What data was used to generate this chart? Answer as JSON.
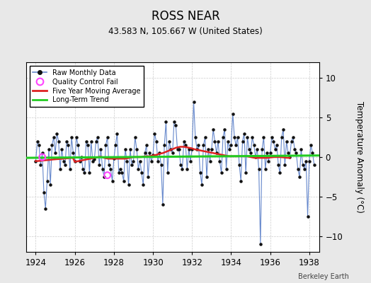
{
  "title": "ROSS NEAR",
  "subtitle": "43.583 N, 105.667 W (United States)",
  "ylabel": "Temperature Anomaly (°C)",
  "credit": "Berkeley Earth",
  "xlim": [
    1923.5,
    1938.5
  ],
  "ylim": [
    -12,
    12
  ],
  "yticks": [
    -10,
    -5,
    0,
    5,
    10
  ],
  "xticks": [
    1924,
    1926,
    1928,
    1930,
    1932,
    1934,
    1936,
    1938
  ],
  "bg_color": "#e8e8e8",
  "plot_bg_color": "#ffffff",
  "line_color": "#6688cc",
  "marker_color": "#111111",
  "moving_avg_color": "#dd2222",
  "trend_color": "#22cc22",
  "qc_color": "#ff44ff",
  "title_fontsize": 12,
  "subtitle_fontsize": 9,
  "raw_data": [
    [
      1924.0,
      -0.5
    ],
    [
      1924.083,
      2.0
    ],
    [
      1924.167,
      1.5
    ],
    [
      1924.25,
      -1.0
    ],
    [
      1924.333,
      0.5
    ],
    [
      1924.417,
      -4.5
    ],
    [
      1924.5,
      -6.5
    ],
    [
      1924.583,
      -3.0
    ],
    [
      1924.667,
      1.0
    ],
    [
      1924.75,
      -3.5
    ],
    [
      1924.833,
      1.5
    ],
    [
      1924.917,
      2.5
    ],
    [
      1925.0,
      0.5
    ],
    [
      1925.083,
      3.0
    ],
    [
      1925.167,
      2.0
    ],
    [
      1925.25,
      -1.5
    ],
    [
      1925.333,
      1.0
    ],
    [
      1925.417,
      -0.5
    ],
    [
      1925.5,
      -1.0
    ],
    [
      1925.583,
      2.0
    ],
    [
      1925.667,
      1.5
    ],
    [
      1925.75,
      -1.5
    ],
    [
      1925.833,
      2.5
    ],
    [
      1925.917,
      0.5
    ],
    [
      1926.0,
      -0.5
    ],
    [
      1926.083,
      2.5
    ],
    [
      1926.167,
      1.5
    ],
    [
      1926.25,
      -0.5
    ],
    [
      1926.333,
      0.0
    ],
    [
      1926.417,
      -1.5
    ],
    [
      1926.5,
      -2.0
    ],
    [
      1926.583,
      2.0
    ],
    [
      1926.667,
      1.5
    ],
    [
      1926.75,
      -2.0
    ],
    [
      1926.833,
      2.0
    ],
    [
      1926.917,
      -0.5
    ],
    [
      1927.0,
      -0.3
    ],
    [
      1927.083,
      2.0
    ],
    [
      1927.167,
      2.5
    ],
    [
      1927.25,
      -1.0
    ],
    [
      1927.333,
      1.0
    ],
    [
      1927.417,
      -1.5
    ],
    [
      1927.5,
      -2.5
    ],
    [
      1927.583,
      1.5
    ],
    [
      1927.667,
      2.5
    ],
    [
      1927.75,
      -1.0
    ],
    [
      1927.833,
      -1.5
    ],
    [
      1927.917,
      -3.0
    ],
    [
      1928.0,
      -0.2
    ],
    [
      1928.083,
      1.5
    ],
    [
      1928.167,
      3.0
    ],
    [
      1928.25,
      -2.0
    ],
    [
      1928.333,
      -1.5
    ],
    [
      1928.417,
      -2.0
    ],
    [
      1928.5,
      -3.0
    ],
    [
      1928.583,
      1.0
    ],
    [
      1928.667,
      -0.5
    ],
    [
      1928.75,
      -3.5
    ],
    [
      1928.833,
      1.0
    ],
    [
      1928.917,
      -1.0
    ],
    [
      1929.0,
      -0.5
    ],
    [
      1929.083,
      2.5
    ],
    [
      1929.167,
      1.0
    ],
    [
      1929.25,
      -1.5
    ],
    [
      1929.333,
      -0.5
    ],
    [
      1929.417,
      -2.0
    ],
    [
      1929.5,
      -3.5
    ],
    [
      1929.583,
      0.5
    ],
    [
      1929.667,
      1.5
    ],
    [
      1929.75,
      -2.5
    ],
    [
      1929.833,
      0.5
    ],
    [
      1929.917,
      -0.5
    ],
    [
      1930.0,
      0.3
    ],
    [
      1930.083,
      3.0
    ],
    [
      1930.167,
      2.0
    ],
    [
      1930.25,
      -0.5
    ],
    [
      1930.333,
      0.5
    ],
    [
      1930.417,
      -1.0
    ],
    [
      1930.5,
      -6.0
    ],
    [
      1930.583,
      1.5
    ],
    [
      1930.667,
      4.5
    ],
    [
      1930.75,
      -2.0
    ],
    [
      1930.833,
      2.0
    ],
    [
      1930.917,
      1.0
    ],
    [
      1931.0,
      0.5
    ],
    [
      1931.083,
      4.5
    ],
    [
      1931.167,
      4.0
    ],
    [
      1931.25,
      1.0
    ],
    [
      1931.333,
      1.0
    ],
    [
      1931.417,
      -1.0
    ],
    [
      1931.5,
      -1.5
    ],
    [
      1931.583,
      2.0
    ],
    [
      1931.667,
      1.5
    ],
    [
      1931.75,
      -1.5
    ],
    [
      1931.833,
      1.0
    ],
    [
      1931.917,
      -0.5
    ],
    [
      1932.0,
      1.0
    ],
    [
      1932.083,
      7.0
    ],
    [
      1932.167,
      2.5
    ],
    [
      1932.25,
      1.0
    ],
    [
      1932.333,
      1.5
    ],
    [
      1932.417,
      -2.0
    ],
    [
      1932.5,
      -3.5
    ],
    [
      1932.583,
      1.5
    ],
    [
      1932.667,
      2.5
    ],
    [
      1932.75,
      -2.5
    ],
    [
      1932.833,
      1.0
    ],
    [
      1932.917,
      -0.5
    ],
    [
      1933.0,
      1.0
    ],
    [
      1933.083,
      3.5
    ],
    [
      1933.167,
      2.0
    ],
    [
      1933.25,
      0.5
    ],
    [
      1933.333,
      2.0
    ],
    [
      1933.417,
      -0.5
    ],
    [
      1933.5,
      -2.0
    ],
    [
      1933.583,
      2.5
    ],
    [
      1933.667,
      3.5
    ],
    [
      1933.75,
      -1.5
    ],
    [
      1933.833,
      2.0
    ],
    [
      1933.917,
      1.0
    ],
    [
      1934.0,
      1.5
    ],
    [
      1934.083,
      5.5
    ],
    [
      1934.167,
      2.5
    ],
    [
      1934.25,
      1.5
    ],
    [
      1934.333,
      2.5
    ],
    [
      1934.417,
      -1.0
    ],
    [
      1934.5,
      -3.0
    ],
    [
      1934.583,
      2.0
    ],
    [
      1934.667,
      3.0
    ],
    [
      1934.75,
      -2.0
    ],
    [
      1934.833,
      2.5
    ],
    [
      1934.917,
      1.0
    ],
    [
      1935.0,
      0.5
    ],
    [
      1935.083,
      2.5
    ],
    [
      1935.167,
      1.5
    ],
    [
      1935.25,
      0.0
    ],
    [
      1935.333,
      1.0
    ],
    [
      1935.417,
      -1.5
    ],
    [
      1935.5,
      -11.0
    ],
    [
      1935.583,
      1.0
    ],
    [
      1935.667,
      2.5
    ],
    [
      1935.75,
      -1.5
    ],
    [
      1935.833,
      0.5
    ],
    [
      1935.917,
      -0.5
    ],
    [
      1936.0,
      0.5
    ],
    [
      1936.083,
      2.5
    ],
    [
      1936.167,
      2.0
    ],
    [
      1936.25,
      1.0
    ],
    [
      1936.333,
      1.5
    ],
    [
      1936.417,
      -1.0
    ],
    [
      1936.5,
      -2.0
    ],
    [
      1936.583,
      2.5
    ],
    [
      1936.667,
      3.5
    ],
    [
      1936.75,
      -1.0
    ],
    [
      1936.833,
      2.0
    ],
    [
      1936.917,
      0.5
    ],
    [
      1937.0,
      0.0
    ],
    [
      1937.083,
      2.0
    ],
    [
      1937.167,
      2.5
    ],
    [
      1937.25,
      1.0
    ],
    [
      1937.333,
      0.5
    ],
    [
      1937.417,
      -1.5
    ],
    [
      1937.5,
      -2.5
    ],
    [
      1937.583,
      1.0
    ],
    [
      1937.667,
      -1.0
    ],
    [
      1937.75,
      -1.5
    ],
    [
      1937.833,
      -0.5
    ],
    [
      1937.917,
      -7.5
    ],
    [
      1938.0,
      -0.5
    ],
    [
      1938.083,
      1.5
    ],
    [
      1938.167,
      0.5
    ],
    [
      1938.25,
      -1.0
    ]
  ],
  "qc_points": [
    [
      1924.333,
      0.0
    ],
    [
      1927.667,
      -2.3
    ]
  ],
  "moving_avg": [
    [
      1924.0,
      -0.5
    ],
    [
      1924.1,
      -0.5
    ],
    [
      1924.2,
      -0.48
    ],
    [
      1924.3,
      -0.45
    ],
    [
      1924.4,
      -0.42
    ],
    [
      1924.5,
      -0.4
    ],
    [
      1924.6,
      -0.38
    ],
    [
      1924.7,
      -0.35
    ],
    [
      1924.8,
      -0.32
    ],
    [
      1924.9,
      -0.3
    ],
    [
      1925.0,
      -0.28
    ],
    [
      1925.1,
      -0.26
    ],
    [
      1925.2,
      -0.24
    ],
    [
      1925.3,
      -0.22
    ],
    [
      1925.4,
      -0.2
    ],
    [
      1925.5,
      -0.18
    ],
    [
      1925.6,
      -0.16
    ],
    [
      1925.7,
      -0.14
    ],
    [
      1925.8,
      -0.12
    ],
    [
      1925.9,
      -0.1
    ],
    [
      1926.0,
      -0.6
    ],
    [
      1926.1,
      -0.55
    ],
    [
      1926.2,
      -0.5
    ],
    [
      1926.3,
      -0.45
    ],
    [
      1926.4,
      -0.4
    ],
    [
      1926.5,
      -0.35
    ],
    [
      1926.6,
      -0.3
    ],
    [
      1926.7,
      -0.25
    ],
    [
      1926.8,
      -0.2
    ],
    [
      1926.9,
      -0.15
    ],
    [
      1927.0,
      -0.1
    ],
    [
      1927.1,
      -0.05
    ],
    [
      1927.2,
      0.0
    ],
    [
      1927.3,
      0.05
    ],
    [
      1927.4,
      0.0
    ],
    [
      1927.5,
      -0.1
    ],
    [
      1927.6,
      -0.15
    ],
    [
      1927.7,
      -0.2
    ],
    [
      1927.8,
      -0.2
    ],
    [
      1927.9,
      -0.2
    ],
    [
      1928.0,
      -0.2
    ],
    [
      1928.1,
      -0.2
    ],
    [
      1928.2,
      -0.2
    ],
    [
      1928.3,
      -0.2
    ],
    [
      1928.4,
      -0.2
    ],
    [
      1928.5,
      -0.2
    ],
    [
      1928.6,
      -0.2
    ],
    [
      1928.7,
      -0.15
    ],
    [
      1928.8,
      -0.1
    ],
    [
      1928.9,
      -0.05
    ],
    [
      1929.0,
      0.0
    ],
    [
      1929.1,
      0.0
    ],
    [
      1929.2,
      0.0
    ],
    [
      1929.3,
      0.0
    ],
    [
      1929.4,
      0.0
    ],
    [
      1929.5,
      0.05
    ],
    [
      1929.6,
      0.1
    ],
    [
      1929.7,
      0.1
    ],
    [
      1929.8,
      0.1
    ],
    [
      1929.9,
      0.15
    ],
    [
      1930.0,
      0.2
    ],
    [
      1930.1,
      0.25
    ],
    [
      1930.2,
      0.3
    ],
    [
      1930.3,
      0.4
    ],
    [
      1930.4,
      0.45
    ],
    [
      1930.5,
      0.5
    ],
    [
      1930.6,
      0.6
    ],
    [
      1930.7,
      0.7
    ],
    [
      1930.8,
      0.8
    ],
    [
      1930.9,
      0.9
    ],
    [
      1931.0,
      1.0
    ],
    [
      1931.1,
      1.1
    ],
    [
      1931.2,
      1.2
    ],
    [
      1931.3,
      1.25
    ],
    [
      1931.4,
      1.3
    ],
    [
      1931.5,
      1.3
    ],
    [
      1931.6,
      1.3
    ],
    [
      1931.7,
      1.25
    ],
    [
      1931.8,
      1.2
    ],
    [
      1931.9,
      1.15
    ],
    [
      1932.0,
      1.1
    ],
    [
      1932.1,
      1.0
    ],
    [
      1932.2,
      0.95
    ],
    [
      1932.3,
      0.9
    ],
    [
      1932.4,
      0.85
    ],
    [
      1932.5,
      0.8
    ],
    [
      1932.6,
      0.75
    ],
    [
      1932.7,
      0.7
    ],
    [
      1932.8,
      0.65
    ],
    [
      1932.9,
      0.6
    ],
    [
      1933.0,
      0.55
    ],
    [
      1933.1,
      0.5
    ],
    [
      1933.2,
      0.45
    ],
    [
      1933.3,
      0.4
    ],
    [
      1933.4,
      0.35
    ],
    [
      1933.5,
      0.3
    ],
    [
      1933.6,
      0.25
    ],
    [
      1933.7,
      0.2
    ],
    [
      1933.8,
      0.15
    ],
    [
      1933.9,
      0.1
    ],
    [
      1934.0,
      0.1
    ],
    [
      1934.1,
      0.1
    ],
    [
      1934.2,
      0.1
    ],
    [
      1934.3,
      0.1
    ],
    [
      1934.4,
      0.1
    ],
    [
      1934.5,
      0.1
    ],
    [
      1934.6,
      0.1
    ],
    [
      1934.7,
      0.1
    ],
    [
      1934.8,
      0.1
    ],
    [
      1934.9,
      0.05
    ],
    [
      1935.0,
      0.0
    ],
    [
      1935.1,
      -0.05
    ],
    [
      1935.2,
      -0.1
    ],
    [
      1935.3,
      -0.1
    ],
    [
      1935.4,
      -0.1
    ],
    [
      1935.5,
      -0.1
    ],
    [
      1935.6,
      -0.1
    ],
    [
      1935.7,
      -0.1
    ],
    [
      1935.8,
      -0.1
    ],
    [
      1935.9,
      -0.08
    ],
    [
      1936.0,
      -0.05
    ],
    [
      1936.1,
      -0.03
    ],
    [
      1936.2,
      0.0
    ],
    [
      1936.3,
      0.0
    ],
    [
      1936.4,
      0.0
    ],
    [
      1936.5,
      0.0
    ],
    [
      1936.6,
      -0.02
    ],
    [
      1936.7,
      -0.05
    ],
    [
      1936.8,
      -0.08
    ],
    [
      1936.9,
      -0.1
    ],
    [
      1937.0,
      -0.1
    ]
  ],
  "trend_x": [
    1923.5,
    1938.5
  ],
  "trend_y": [
    -0.1,
    0.2
  ]
}
